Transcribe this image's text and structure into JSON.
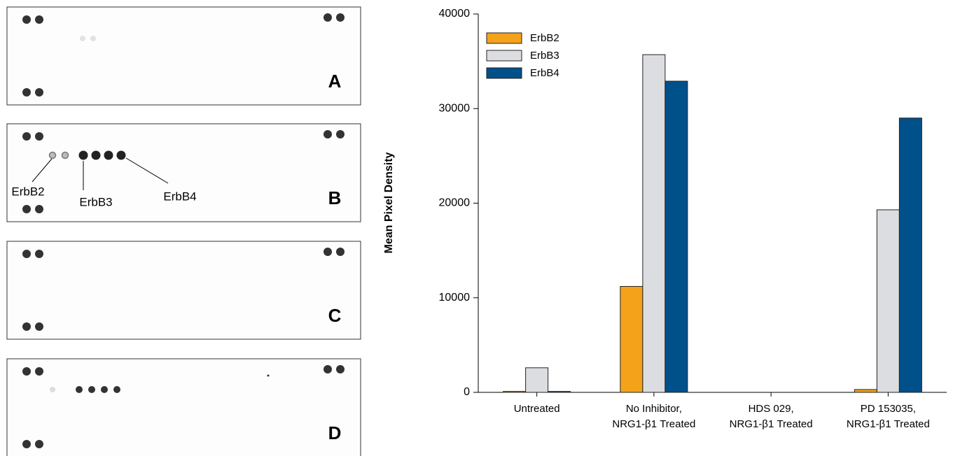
{
  "blots": {
    "panels": [
      {
        "label": "A"
      },
      {
        "label": "B"
      },
      {
        "label": "C"
      },
      {
        "label": "D"
      }
    ],
    "annotations": [
      "ErbB2",
      "ErbB3",
      "ErbB4"
    ]
  },
  "chart_data": {
    "type": "bar",
    "y_label": "Mean Pixel Density",
    "categories": [
      "Untreated",
      "No Inhibitor, NRG1-β1 Treated",
      "HDS 029, NRG1-β1 Treated",
      "PD 153035, NRG1-β1 Treated"
    ],
    "series": [
      {
        "name": "ErbB2",
        "color": "#f5a21b",
        "values": [
          100,
          11200,
          0,
          300
        ]
      },
      {
        "name": "ErbB3",
        "color": "#dcdde0",
        "values": [
          2600,
          35700,
          0,
          19300
        ]
      },
      {
        "name": "ErbB4",
        "color": "#00508a",
        "values": [
          100,
          32900,
          0,
          29000
        ]
      }
    ],
    "ylim": [
      0,
      40000
    ],
    "yticks": [
      0,
      10000,
      20000,
      30000,
      40000
    ],
    "legend": "upper-left",
    "grid": false
  }
}
